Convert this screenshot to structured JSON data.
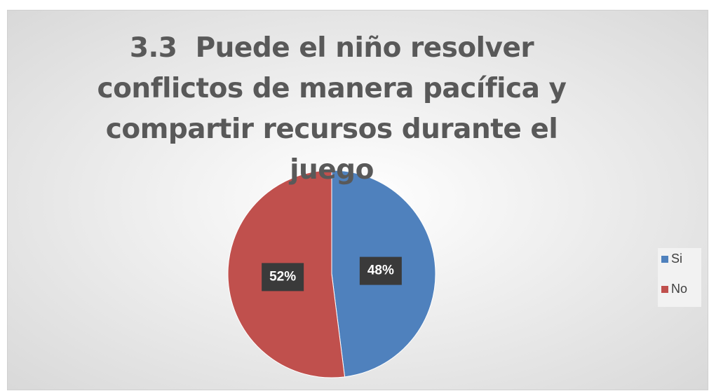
{
  "chart_data": {
    "type": "pie",
    "title": "3.3  Puede el niño resolver conflictos de manera pacífica y compartir recursos durante el juego",
    "categories": [
      "Si",
      "No"
    ],
    "values": [
      48,
      52
    ],
    "value_labels": [
      "48%",
      "52%"
    ],
    "colors": [
      "#4f81bd",
      "#c0504d"
    ],
    "legend": "right"
  }
}
